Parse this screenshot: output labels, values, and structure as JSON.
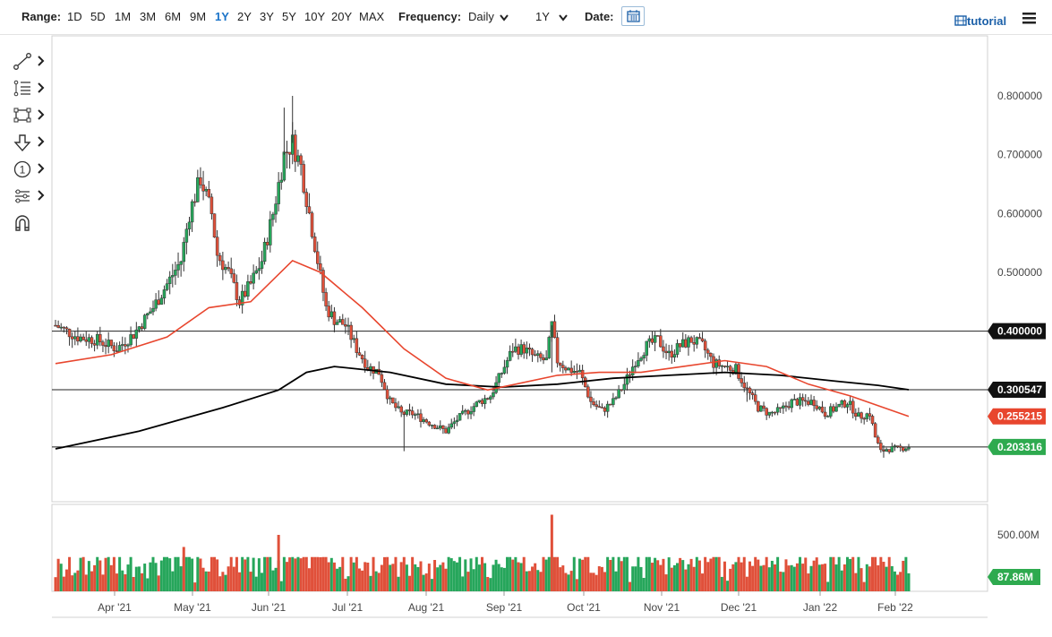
{
  "toolbar": {
    "range_label": "Range:",
    "ranges": [
      "1D",
      "5D",
      "1M",
      "3M",
      "6M",
      "9M",
      "1Y",
      "2Y",
      "3Y",
      "5Y",
      "10Y",
      "20Y",
      "MAX"
    ],
    "active_range": "1Y",
    "frequency_label": "Frequency:",
    "frequency_value": "Daily",
    "period_value": "1Y",
    "date_label": "Date:",
    "tutorial_label": "tutorial"
  },
  "tools": [
    "line-draw-icon",
    "fib-retracement-icon",
    "rectangle-icon",
    "arrow-down-icon",
    "annotation-number-icon",
    "pitchfork-icon",
    "magnet-icon"
  ],
  "colors": {
    "up": "#26a65b",
    "down": "#e0503a",
    "ma_short": "#e8462e",
    "ma_long": "#000000",
    "price_badge_green": "#2eaa4f",
    "price_badge_red": "#e8462e",
    "badge_dark": "#111111"
  },
  "chart_data": {
    "type": "candlestick",
    "x_labels": [
      "Apr '21",
      "May '21",
      "Jun '21",
      "Jul '21",
      "Aug '21",
      "Sep '21",
      "Oct '21",
      "Nov '21",
      "Dec '21",
      "Jan '22",
      "Feb '22"
    ],
    "y_ticks": [
      "0.800000",
      "0.700000",
      "0.600000",
      "0.500000"
    ],
    "ylim": [
      0.14,
      0.82
    ],
    "horizontal_lines": [
      0.4,
      0.300547,
      0.203316
    ],
    "badges": [
      {
        "text": "0.400000",
        "value": 0.4,
        "style": "dark"
      },
      {
        "text": "0.300547",
        "value": 0.300547,
        "style": "dark"
      },
      {
        "text": "0.255215",
        "value": 0.255215,
        "style": "red"
      },
      {
        "text": "0.203316",
        "value": 0.203316,
        "style": "green"
      }
    ],
    "price_path": [
      [
        0,
        0.41
      ],
      [
        8,
        0.39
      ],
      [
        15,
        0.385
      ],
      [
        22,
        0.37
      ],
      [
        28,
        0.395
      ],
      [
        35,
        0.44
      ],
      [
        40,
        0.48
      ],
      [
        45,
        0.52
      ],
      [
        48,
        0.6
      ],
      [
        52,
        0.66
      ],
      [
        56,
        0.6
      ],
      [
        58,
        0.53
      ],
      [
        62,
        0.5
      ],
      [
        66,
        0.45
      ],
      [
        70,
        0.48
      ],
      [
        74,
        0.52
      ],
      [
        78,
        0.6
      ],
      [
        82,
        0.7
      ],
      [
        85,
        0.72
      ],
      [
        88,
        0.68
      ],
      [
        91,
        0.6
      ],
      [
        94,
        0.52
      ],
      [
        97,
        0.44
      ],
      [
        100,
        0.42
      ],
      [
        104,
        0.41
      ],
      [
        108,
        0.37
      ],
      [
        112,
        0.34
      ],
      [
        116,
        0.33
      ],
      [
        120,
        0.28
      ],
      [
        124,
        0.26
      ],
      [
        128,
        0.26
      ],
      [
        132,
        0.25
      ],
      [
        136,
        0.24
      ],
      [
        140,
        0.23
      ],
      [
        144,
        0.25
      ],
      [
        148,
        0.265
      ],
      [
        152,
        0.28
      ],
      [
        156,
        0.29
      ],
      [
        160,
        0.33
      ],
      [
        164,
        0.37
      ],
      [
        168,
        0.37
      ],
      [
        172,
        0.355
      ],
      [
        176,
        0.35
      ],
      [
        178,
        0.41
      ],
      [
        180,
        0.35
      ],
      [
        184,
        0.335
      ],
      [
        188,
        0.33
      ],
      [
        192,
        0.28
      ],
      [
        196,
        0.265
      ],
      [
        200,
        0.28
      ],
      [
        204,
        0.31
      ],
      [
        208,
        0.35
      ],
      [
        212,
        0.375
      ],
      [
        216,
        0.385
      ],
      [
        220,
        0.36
      ],
      [
        224,
        0.375
      ],
      [
        228,
        0.385
      ],
      [
        232,
        0.375
      ],
      [
        236,
        0.345
      ],
      [
        240,
        0.34
      ],
      [
        244,
        0.335
      ],
      [
        248,
        0.3
      ],
      [
        252,
        0.27
      ],
      [
        256,
        0.26
      ],
      [
        260,
        0.265
      ],
      [
        264,
        0.28
      ],
      [
        268,
        0.28
      ],
      [
        272,
        0.28
      ],
      [
        276,
        0.26
      ],
      [
        280,
        0.27
      ],
      [
        284,
        0.28
      ],
      [
        288,
        0.255
      ],
      [
        292,
        0.26
      ],
      [
        294,
        0.22
      ],
      [
        296,
        0.195
      ],
      [
        298,
        0.2
      ],
      [
        302,
        0.2
      ],
      [
        306,
        0.203316
      ]
    ],
    "ma_short": [
      [
        0,
        0.345
      ],
      [
        20,
        0.36
      ],
      [
        40,
        0.39
      ],
      [
        55,
        0.44
      ],
      [
        70,
        0.45
      ],
      [
        85,
        0.52
      ],
      [
        95,
        0.5
      ],
      [
        110,
        0.44
      ],
      [
        125,
        0.37
      ],
      [
        140,
        0.32
      ],
      [
        155,
        0.3
      ],
      [
        165,
        0.31
      ],
      [
        180,
        0.325
      ],
      [
        195,
        0.33
      ],
      [
        210,
        0.33
      ],
      [
        225,
        0.34
      ],
      [
        240,
        0.35
      ],
      [
        255,
        0.34
      ],
      [
        270,
        0.31
      ],
      [
        285,
        0.29
      ],
      [
        306,
        0.255215
      ]
    ],
    "ma_long": [
      [
        0,
        0.2
      ],
      [
        30,
        0.23
      ],
      [
        60,
        0.27
      ],
      [
        80,
        0.3
      ],
      [
        90,
        0.33
      ],
      [
        100,
        0.34
      ],
      [
        120,
        0.33
      ],
      [
        140,
        0.31
      ],
      [
        160,
        0.305
      ],
      [
        180,
        0.31
      ],
      [
        200,
        0.32
      ],
      [
        220,
        0.325
      ],
      [
        240,
        0.33
      ],
      [
        260,
        0.325
      ],
      [
        280,
        0.315
      ],
      [
        295,
        0.308
      ],
      [
        306,
        0.300547
      ]
    ],
    "volume": {
      "y_ticks": [
        "500.00M"
      ],
      "last_badge": "87.86M",
      "last_value": 87.86,
      "ylim": [
        0,
        700
      ]
    }
  }
}
